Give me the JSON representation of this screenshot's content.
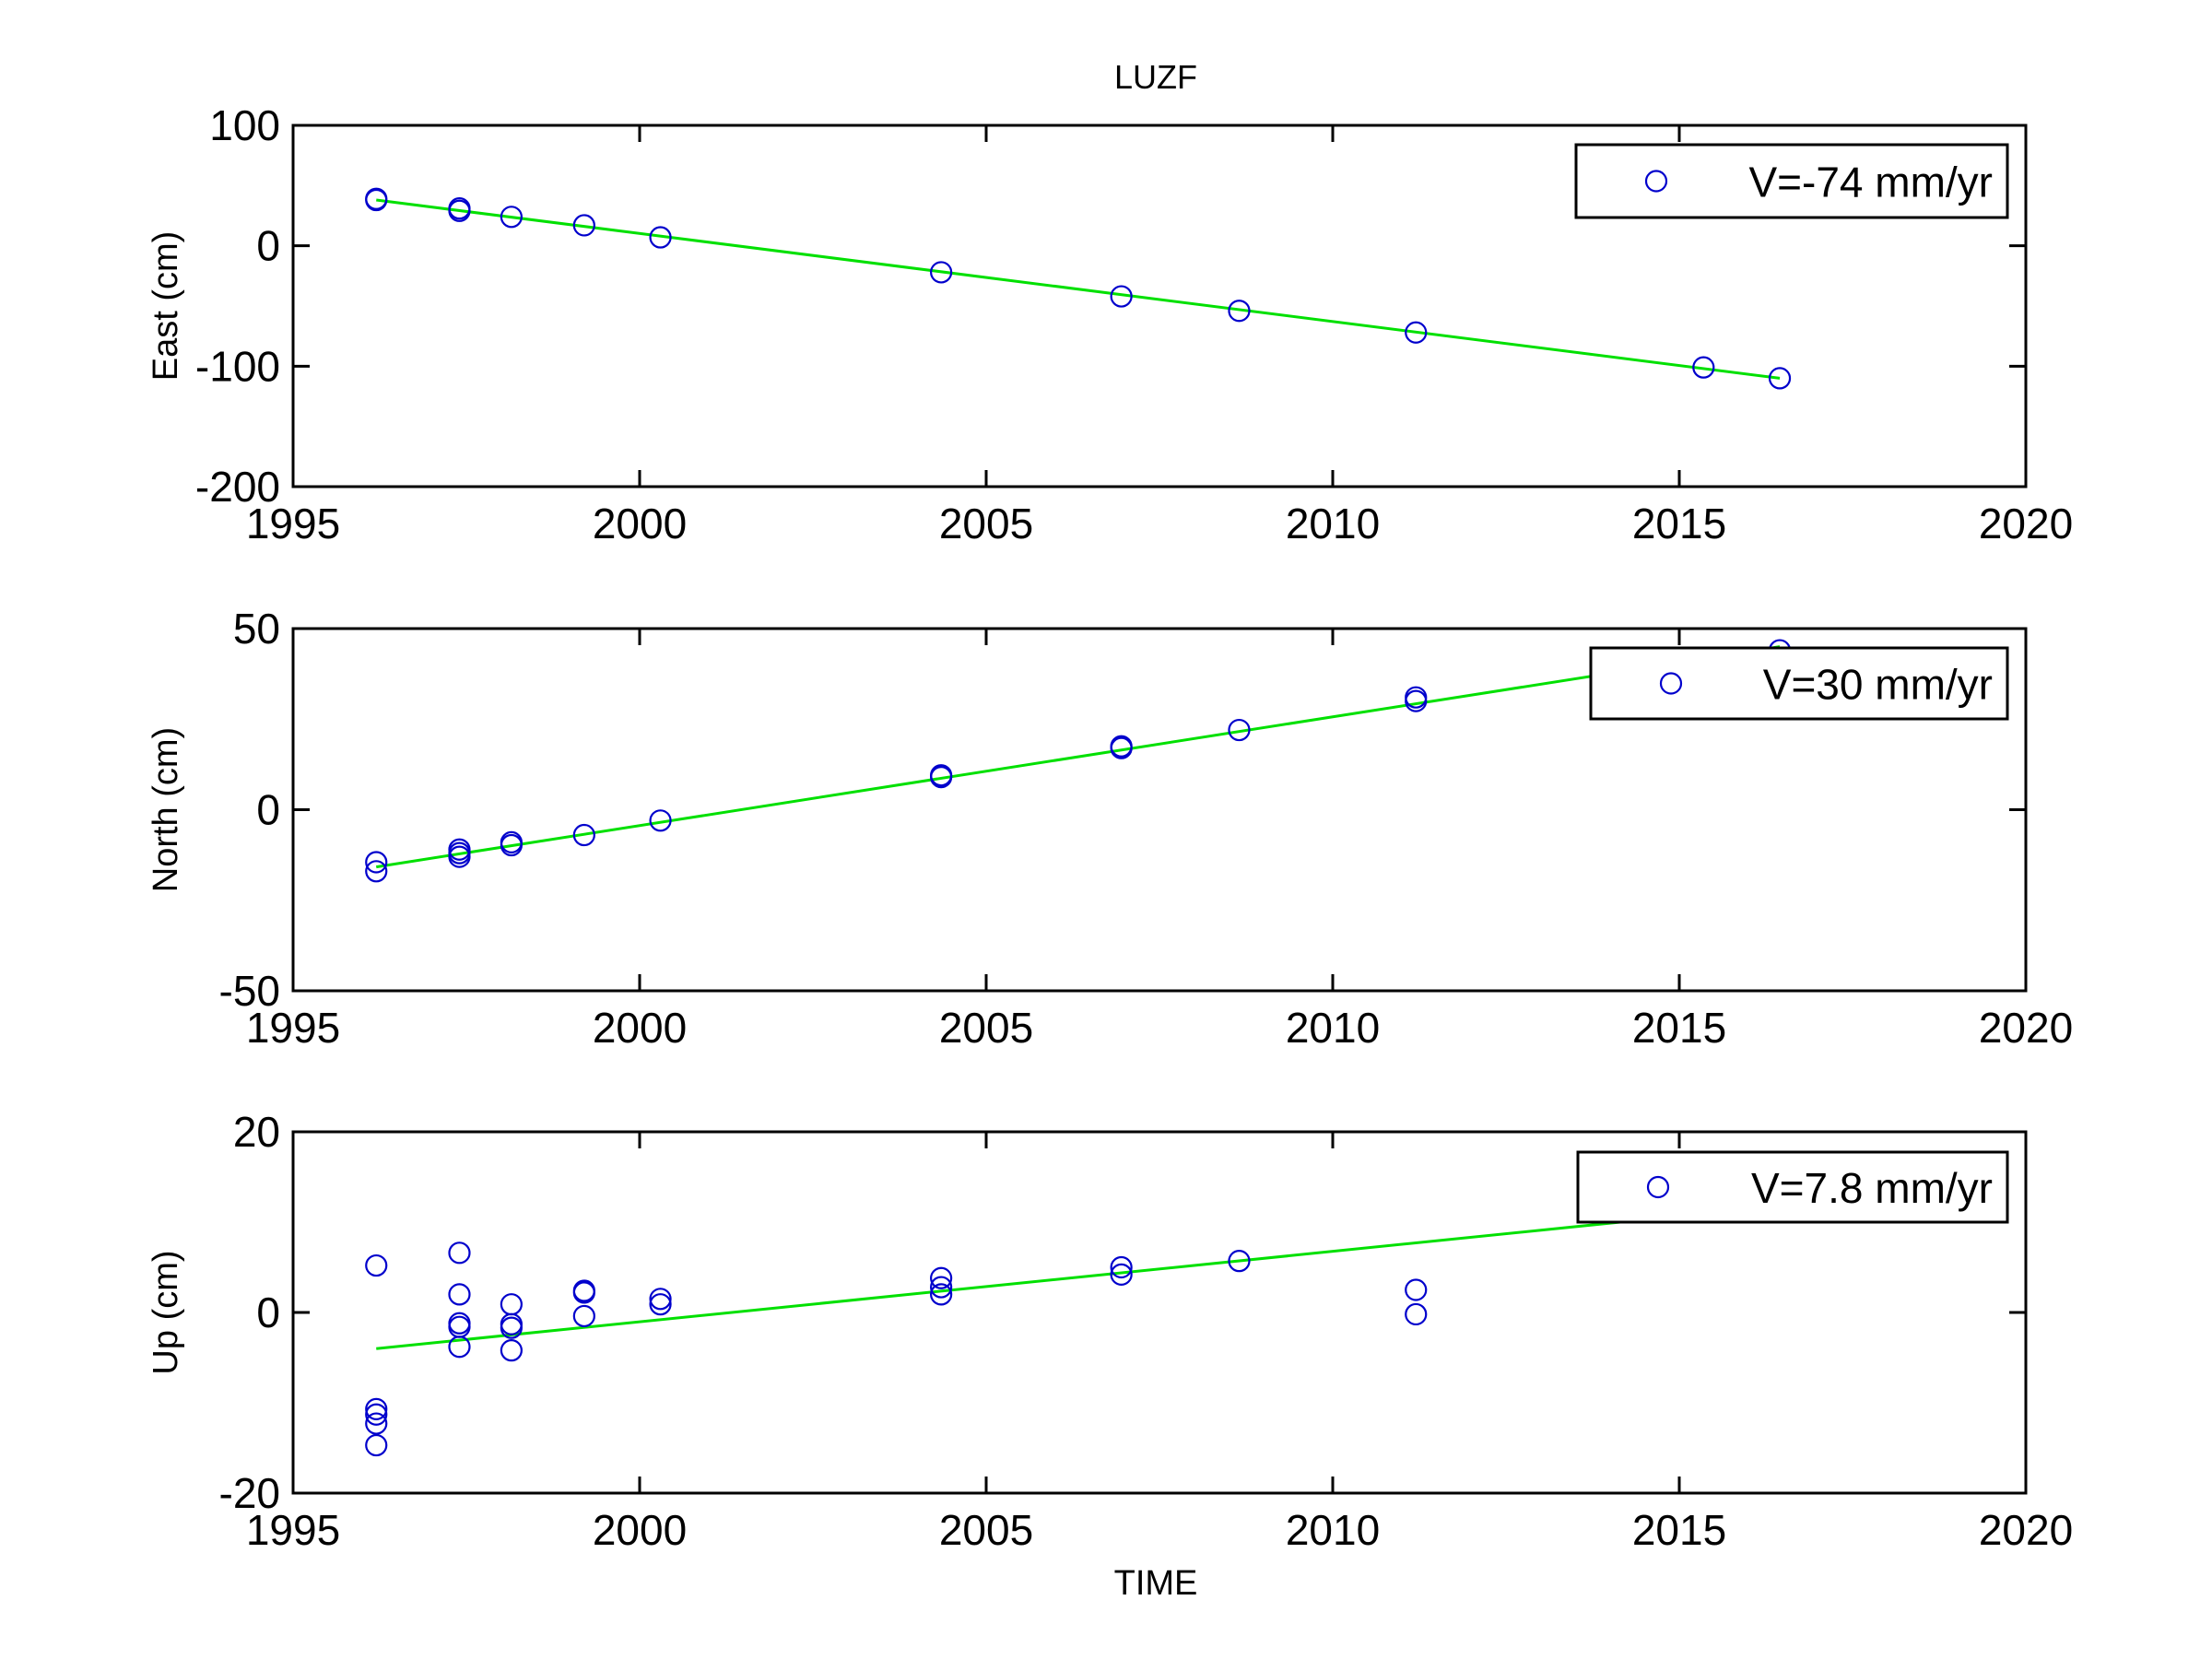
{
  "figure": {
    "title": "LUZF",
    "xlabel": "TIME"
  },
  "colors": {
    "markers": "#0000cc",
    "fit_line": "#00e000",
    "axes": "#000000",
    "background": "#ffffff"
  },
  "chart_data": [
    {
      "type": "scatter",
      "title": "LUZF",
      "xlabel": "",
      "ylabel": "East (cm)",
      "xlim": [
        1995,
        2020
      ],
      "ylim": [
        -200,
        100
      ],
      "xticks": [
        1995,
        2000,
        2005,
        2010,
        2015,
        2020
      ],
      "yticks": [
        -200,
        -100,
        0,
        100
      ],
      "grid": false,
      "legend_position": "top-right",
      "series": [
        {
          "name": "V=-74 mm/yr",
          "marker": "circle",
          "points": [
            [
              1996.2,
              39
            ],
            [
              1996.2,
              38
            ],
            [
              1997.4,
              31
            ],
            [
              1997.4,
              29
            ],
            [
              1998.15,
              24
            ],
            [
              1999.2,
              17
            ],
            [
              2000.3,
              7
            ],
            [
              2004.35,
              -22
            ],
            [
              2006.95,
              -42
            ],
            [
              2008.65,
              -54
            ],
            [
              2011.2,
              -72
            ],
            [
              2015.35,
              -101
            ],
            [
              2016.45,
              -110
            ]
          ]
        }
      ],
      "fit_line": {
        "x": [
          1996.2,
          2016.45
        ],
        "y": [
          38,
          -110
        ]
      }
    },
    {
      "type": "scatter",
      "xlabel": "",
      "ylabel": "North (cm)",
      "xlim": [
        1995,
        2020
      ],
      "ylim": [
        -50,
        50
      ],
      "xticks": [
        1995,
        2000,
        2005,
        2010,
        2015,
        2020
      ],
      "yticks": [
        -50,
        0,
        50
      ],
      "grid": false,
      "legend_position": "top-right",
      "series": [
        {
          "name": "V=30 mm/yr",
          "marker": "circle",
          "points": [
            [
              1996.2,
              -14.5
            ],
            [
              1996.2,
              -17
            ],
            [
              1997.4,
              -11
            ],
            [
              1997.4,
              -12
            ],
            [
              1997.4,
              -13
            ],
            [
              1998.15,
              -9
            ],
            [
              1998.15,
              -9.8
            ],
            [
              1999.2,
              -7
            ],
            [
              2000.3,
              -3
            ],
            [
              2004.35,
              9.5
            ],
            [
              2004.35,
              9
            ],
            [
              2006.95,
              17
            ],
            [
              2006.95,
              17.5
            ],
            [
              2008.65,
              22
            ],
            [
              2011.2,
              31
            ],
            [
              2011.2,
              30
            ],
            [
              2016.45,
              44
            ]
          ]
        }
      ],
      "fit_line": {
        "x": [
          1996.2,
          2016.45
        ],
        "y": [
          -15.8,
          45
        ]
      }
    },
    {
      "type": "scatter",
      "xlabel": "TIME",
      "ylabel": "Up (cm)",
      "xlim": [
        1995,
        2020
      ],
      "ylim": [
        -20,
        20
      ],
      "xticks": [
        1995,
        2000,
        2005,
        2010,
        2015,
        2020
      ],
      "yticks": [
        -20,
        0,
        20
      ],
      "grid": false,
      "legend_position": "top-right",
      "series": [
        {
          "name": "V=7.8 mm/yr",
          "marker": "circle",
          "points": [
            [
              1996.2,
              5.2
            ],
            [
              1996.2,
              -10.7
            ],
            [
              1996.2,
              -11.3
            ],
            [
              1996.2,
              -12.3
            ],
            [
              1996.2,
              -14.7
            ],
            [
              1997.4,
              6.6
            ],
            [
              1997.4,
              2
            ],
            [
              1997.4,
              -1.2
            ],
            [
              1997.4,
              -1.6
            ],
            [
              1997.4,
              -3.8
            ],
            [
              1998.15,
              0.9
            ],
            [
              1998.15,
              -1.3
            ],
            [
              1998.15,
              -1.7
            ],
            [
              1998.15,
              -4.2
            ],
            [
              1999.2,
              2.4
            ],
            [
              1999.2,
              2.2
            ],
            [
              1999.2,
              -0.4
            ],
            [
              2000.3,
              1.5
            ],
            [
              2000.3,
              0.9
            ],
            [
              2004.35,
              3.8
            ],
            [
              2004.35,
              2.8
            ],
            [
              2004.35,
              2
            ],
            [
              2006.95,
              5
            ],
            [
              2006.95,
              4.2
            ],
            [
              2008.65,
              5.7
            ],
            [
              2011.2,
              2.5
            ],
            [
              2011.2,
              -0.2
            ]
          ]
        }
      ],
      "fit_line": {
        "x": [
          1996.2,
          2016.45
        ],
        "y": [
          -4,
          11.8
        ]
      }
    }
  ]
}
